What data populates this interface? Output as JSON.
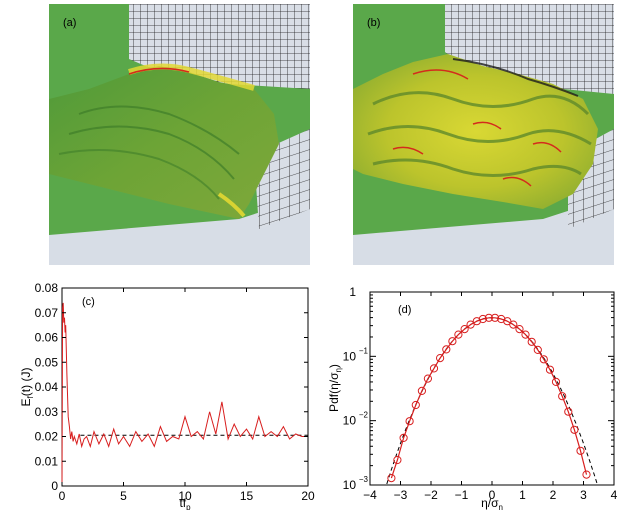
{
  "renders": [
    {
      "label": "(a)",
      "colors": {
        "wall": "#5aa84a",
        "floor": "#d7dde6",
        "mesh_bg": "#d9dee6",
        "mesh_line": "#1b1b1b",
        "surface": "#6da436",
        "ridge": "#e2d832",
        "hot": "#d42b1c"
      }
    },
    {
      "label": "(b)",
      "colors": {
        "wall": "#5aa84a",
        "floor": "#d7dde6",
        "mesh_bg": "#d9dee6",
        "mesh_line": "#1b1b1b",
        "surface": "#c8cc2e",
        "ridge": "#e9e636",
        "hot": "#d42b1c"
      }
    }
  ],
  "chart_data": [
    {
      "type": "line",
      "panel_label": "(c)",
      "xlabel": "tf",
      "xlabel_sub": "p",
      "ylabel": "E",
      "ylabel_sub": "f",
      "ylabel_rest": "(t) (J)",
      "xlim": [
        0,
        20
      ],
      "ylim": [
        0,
        0.08
      ],
      "xticks": [
        "0",
        "5",
        "10",
        "15",
        "20"
      ],
      "yticks": [
        "0",
        "0.01",
        "0.02",
        "0.03",
        "0.04",
        "0.05",
        "0.06",
        "0.07",
        "0.08"
      ],
      "series_color": "#d81e1e",
      "reference_color": "#000000",
      "reference_style": "dashed",
      "reference_y": 0.0205,
      "series": [
        {
          "x": [
            0,
            0.05,
            0.1,
            0.15,
            0.2,
            0.25,
            0.3,
            0.4,
            0.5,
            0.6,
            0.7,
            0.8,
            0.9,
            1.0,
            1.2,
            1.4,
            1.6,
            1.8,
            2.0,
            2.3,
            2.6,
            3.0,
            3.4,
            3.8,
            4.2,
            4.6,
            5.0,
            5.5,
            6.0,
            6.5,
            7.0,
            7.5,
            8.0,
            8.5,
            9.0,
            9.5,
            10.0,
            10.5,
            11.0,
            11.5,
            12.0,
            12.5,
            13.0,
            13.5,
            14.0,
            14.5,
            15.0,
            15.5,
            16.0,
            16.5,
            17.0,
            17.5,
            18.0,
            18.5,
            19.0,
            19.5,
            20.0
          ],
          "y": [
            0.0,
            0.072,
            0.074,
            0.066,
            0.068,
            0.062,
            0.065,
            0.045,
            0.028,
            0.024,
            0.019,
            0.022,
            0.018,
            0.02,
            0.017,
            0.021,
            0.016,
            0.019,
            0.02,
            0.016,
            0.022,
            0.017,
            0.021,
            0.016,
            0.023,
            0.017,
            0.02,
            0.016,
            0.022,
            0.018,
            0.021,
            0.016,
            0.024,
            0.018,
            0.02,
            0.019,
            0.028,
            0.02,
            0.022,
            0.019,
            0.03,
            0.021,
            0.034,
            0.019,
            0.025,
            0.02,
            0.023,
            0.019,
            0.028,
            0.02,
            0.022,
            0.02,
            0.024,
            0.019,
            0.021,
            0.02,
            0.02
          ]
        }
      ]
    },
    {
      "type": "scatter",
      "panel_label": "(d)",
      "xlabel": "η/σ",
      "xlabel_sub": "η",
      "ylabel": "Pdf(η/σ",
      "ylabel_sub": "η",
      "ylabel_rest": ")",
      "xlim": [
        -4,
        4
      ],
      "ylim_log10": [
        -3,
        0
      ],
      "scale_y": "log",
      "xticks": [
        "−4",
        "−3",
        "−2",
        "−1",
        "0",
        "1",
        "2",
        "3",
        "4"
      ],
      "yticks": [
        {
          "base": "10",
          "exp": "−3"
        },
        {
          "base": "10",
          "exp": "−2"
        },
        {
          "base": "10",
          "exp": "−1"
        },
        {
          "base": "1",
          "exp": ""
        }
      ],
      "marker": "circle",
      "series_color": "#d81e1e",
      "reference_color": "#000000",
      "reference_style": "dashed",
      "reference": "gaussian",
      "series": [
        {
          "x": [
            -3.3,
            -3.1,
            -2.9,
            -2.7,
            -2.5,
            -2.3,
            -2.1,
            -1.9,
            -1.7,
            -1.5,
            -1.3,
            -1.1,
            -0.9,
            -0.7,
            -0.5,
            -0.3,
            -0.1,
            0.1,
            0.3,
            0.5,
            0.7,
            0.9,
            1.1,
            1.3,
            1.5,
            1.7,
            1.9,
            2.1,
            2.3,
            2.5,
            2.7,
            2.9,
            3.1
          ],
          "y": [
            0.00128,
            0.00245,
            0.0054,
            0.0098,
            0.0175,
            0.029,
            0.045,
            0.065,
            0.094,
            0.128,
            0.172,
            0.218,
            0.265,
            0.311,
            0.352,
            0.381,
            0.397,
            0.397,
            0.381,
            0.352,
            0.311,
            0.265,
            0.218,
            0.168,
            0.126,
            0.09,
            0.062,
            0.04,
            0.024,
            0.0138,
            0.0072,
            0.0034,
            0.00145
          ]
        }
      ]
    }
  ]
}
